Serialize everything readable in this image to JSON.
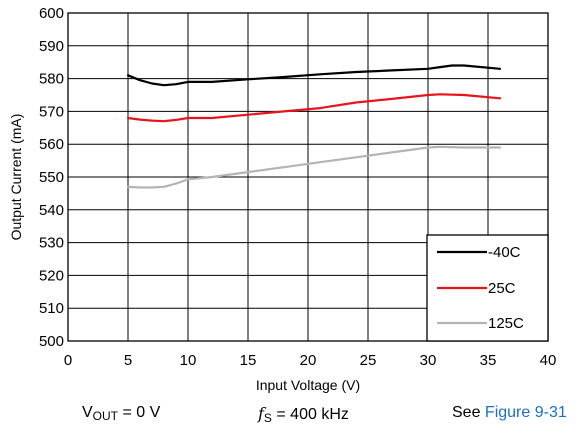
{
  "chart_data": {
    "type": "line",
    "title": "",
    "xlabel": "Input Voltage (V)",
    "ylabel": "Output Current (mA)",
    "xlim": [
      0,
      40
    ],
    "ylim": [
      500,
      600
    ],
    "xticks": [
      "0",
      "5",
      "10",
      "15",
      "20",
      "25",
      "30",
      "35",
      "40"
    ],
    "yticks": [
      "500",
      "510",
      "520",
      "530",
      "540",
      "550",
      "560",
      "570",
      "580",
      "590",
      "600"
    ],
    "grid": true,
    "legend_position": "bottom-right",
    "series": [
      {
        "name": "-40C",
        "color": "#000000",
        "x": [
          5,
          6,
          7,
          8,
          9,
          10,
          12,
          15,
          18,
          21,
          24,
          27,
          30,
          31,
          32,
          33,
          36
        ],
        "y": [
          581,
          579.5,
          578.5,
          578,
          578.3,
          579,
          579,
          579.8,
          580.5,
          581.3,
          582,
          582.5,
          583,
          583.5,
          584,
          584,
          583
        ]
      },
      {
        "name": "25C",
        "color": "#e8141c",
        "x": [
          5,
          6,
          7,
          8,
          9,
          10,
          12,
          15,
          18,
          21,
          24,
          27,
          30,
          31,
          33,
          36
        ],
        "y": [
          568,
          567.5,
          567.2,
          567,
          567.4,
          568,
          568,
          569,
          570,
          571,
          572.7,
          573.8,
          575,
          575.2,
          575,
          574
        ]
      },
      {
        "name": "125C",
        "color": "#b4b4b4",
        "x": [
          5,
          6,
          7,
          8,
          9,
          10,
          12,
          15,
          18,
          21,
          24,
          27,
          30,
          31,
          33,
          36
        ],
        "y": [
          547,
          546.8,
          546.8,
          547,
          548,
          549.3,
          550,
          551.5,
          553,
          554.5,
          556,
          557.5,
          559,
          559.2,
          559,
          559
        ]
      }
    ]
  },
  "caption": {
    "vout_prefix": "V",
    "vout_sub": "OUT",
    "vout_suffix": " = 0 V",
    "fs_italic": "f",
    "fs_sub": "S",
    "fs_suffix": " = 400 kHz",
    "see_prefix": "See ",
    "see_link": "Figure 9-31"
  }
}
